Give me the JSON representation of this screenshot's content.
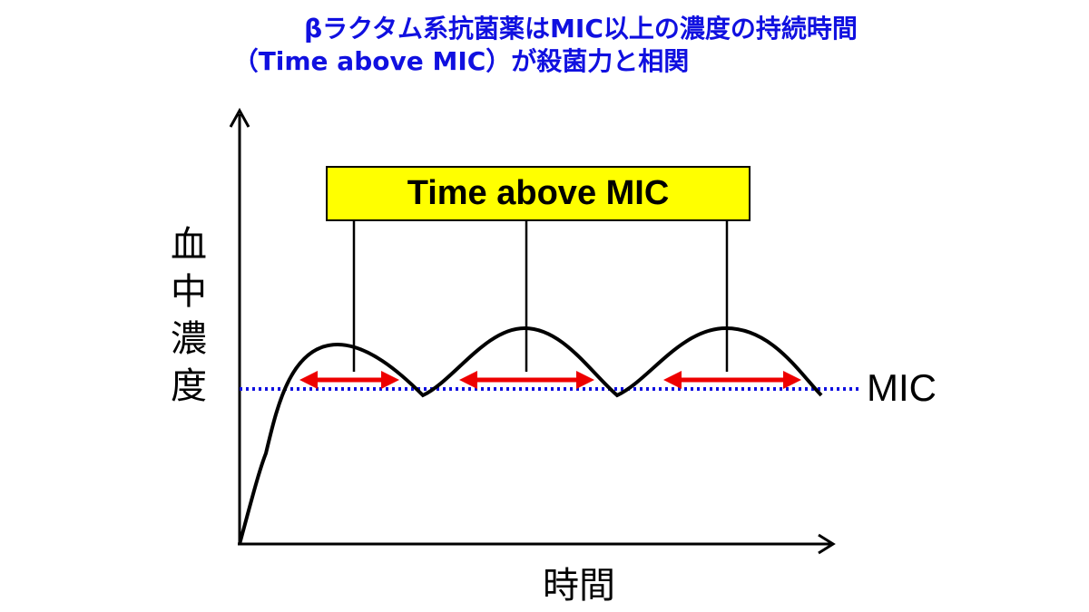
{
  "title": {
    "line1": "βラクタム系抗菌薬はMIC以上の濃度の持続時間",
    "line2": "（Time above MIC）が殺菌力と相関",
    "color": "#1010e0"
  },
  "y_axis": {
    "label_chars": [
      "血",
      "中",
      "濃",
      "度"
    ]
  },
  "x_axis": {
    "label": "時間"
  },
  "mic_line": {
    "label": "MIC",
    "color": "#1010e0",
    "style": "dotted"
  },
  "callout": {
    "label": "Time above MIC",
    "background": "#ffff00",
    "connectors_to_peaks": 3
  },
  "concentration_curve": {
    "color": "#000000",
    "peaks": 3,
    "description_of_shape": ""
  },
  "arrows": {
    "color": "#ee0000",
    "count": 3,
    "type": "double-headed"
  }
}
